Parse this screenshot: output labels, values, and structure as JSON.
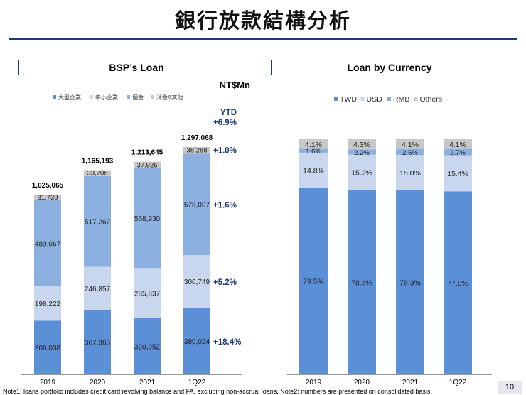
{
  "page": {
    "title": "銀行放款結構分析",
    "footnote": "Note1: loans portfolio includes credit card revolving balance and FA, excluding non-accrual loans. Note2: numbers are presented on consolidated basis.",
    "page_number": "10"
  },
  "colors": {
    "navy": "#1e3a78",
    "dark_blue": "#5b8fd6",
    "light_blue": "#c9d7ee",
    "mid_blue": "#8cb0e0",
    "grey": "#c8c8c8"
  },
  "chart_data": [
    {
      "type": "bar",
      "stacked": true,
      "title": "BSP’s Loan",
      "unit": "NT$Mn",
      "categories": [
        "2019",
        "2020",
        "2021",
        "1Q22"
      ],
      "series": [
        {
          "name": "大型企業",
          "values": [
            306038,
            367365,
            320952,
            380024
          ],
          "labels": [
            "306,038",
            "367,365",
            "320,952",
            "380,024"
          ],
          "color": "#5b8fd6"
        },
        {
          "name": "中小企業",
          "values": [
            198222,
            246857,
            285837,
            300749
          ],
          "labels": [
            "198,222",
            "246,857",
            "285,837",
            "300,749"
          ],
          "color": "#c9d7ee"
        },
        {
          "name": "個金",
          "values": [
            489067,
            517262,
            568930,
            578007
          ],
          "labels": [
            "489,067",
            "517,262",
            "568,930",
            "578,007"
          ],
          "color": "#8cb0e0"
        },
        {
          "name": "消金&其他",
          "values": [
            31739,
            33708,
            37926,
            38288
          ],
          "labels": [
            "31,739",
            "33,708",
            "37,926",
            "38,288"
          ],
          "color": "#c8c8c8"
        }
      ],
      "totals": [
        "1,025,065",
        "1,165,193",
        "1,213,645",
        "1,297,068"
      ],
      "ytd_title": "YTD",
      "ytd_total": "+6.9%",
      "ytd": [
        "+18.4%",
        "+5.2%",
        "+1.6%",
        "+1.0%"
      ],
      "legend_position": "top-left"
    },
    {
      "type": "bar",
      "stacked": true,
      "percent": true,
      "title": "Loan by Currency",
      "categories": [
        "2019",
        "2020",
        "2021",
        "1Q22"
      ],
      "series": [
        {
          "name": "TWD",
          "values": [
            79.5,
            78.3,
            78.3,
            77.8
          ],
          "labels": [
            "79.5%",
            "78.3%",
            "78.3%",
            "77.8%"
          ],
          "color": "#5b8fd6"
        },
        {
          "name": "USD",
          "values": [
            14.8,
            15.2,
            15.0,
            15.4
          ],
          "labels": [
            "14.8%",
            "15.2%",
            "15.0%",
            "15.4%"
          ],
          "color": "#c9d7ee"
        },
        {
          "name": "RMB",
          "values": [
            1.6,
            2.2,
            2.6,
            2.7
          ],
          "labels": [
            "1.6%",
            "2.2%",
            "2.6%",
            "2.7%"
          ],
          "color": "#8cb0e0"
        },
        {
          "name": "Others",
          "values": [
            4.1,
            4.3,
            4.1,
            4.1
          ],
          "labels": [
            "4.1%",
            "4.3%",
            "4.1%",
            "4.1%"
          ],
          "color": "#c8c8c8"
        }
      ],
      "legend_position": "top-left"
    }
  ]
}
